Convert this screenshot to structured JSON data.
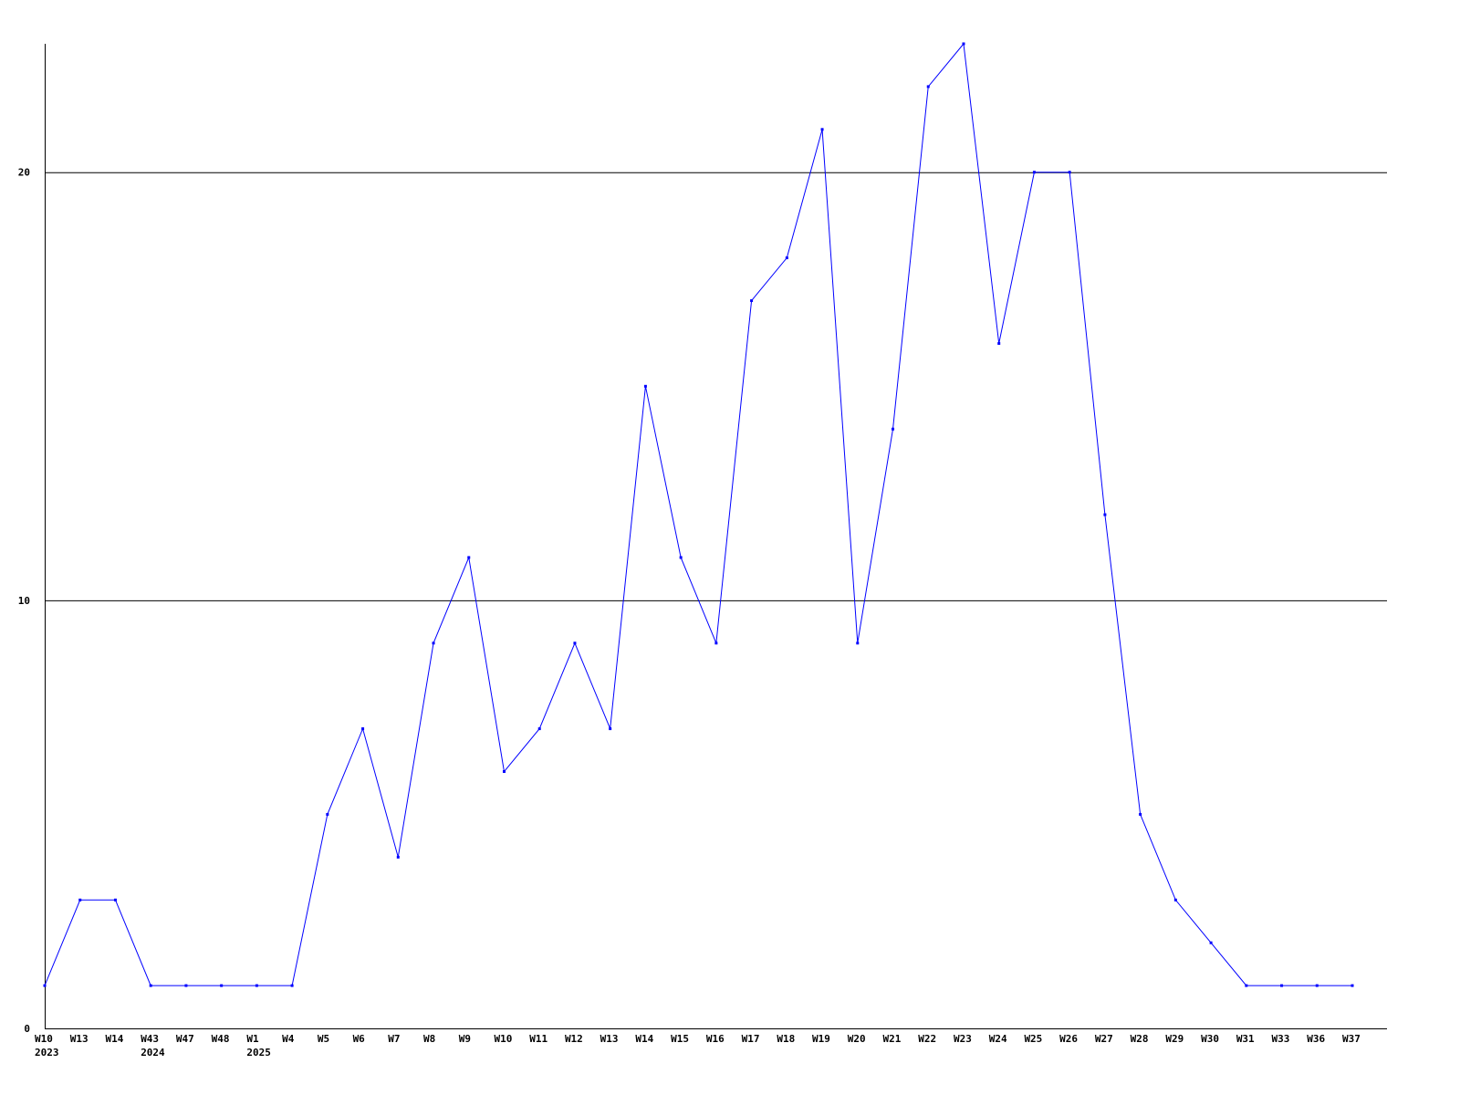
{
  "chart_data": {
    "type": "line",
    "title": "",
    "xlabel": "",
    "ylabel": "",
    "ylim": [
      0,
      23
    ],
    "yticks": [
      0,
      10,
      20
    ],
    "grid": "horizontal at y ticks",
    "line_color": "#0000ff",
    "categories": [
      "W10",
      "W13",
      "W14",
      "W43",
      "W47",
      "W48",
      "W1",
      "W4",
      "W5",
      "W6",
      "W7",
      "W8",
      "W9",
      "W10",
      "W11",
      "W12",
      "W13",
      "W14",
      "W15",
      "W16",
      "W17",
      "W18",
      "W19",
      "W20",
      "W21",
      "W22",
      "W23",
      "W24",
      "W25",
      "W26",
      "W27",
      "W28",
      "W29",
      "W30",
      "W31",
      "W33",
      "W36",
      "W37"
    ],
    "year_labels": [
      "2023",
      "",
      "",
      "2024",
      "",
      "",
      "2025",
      "",
      "",
      "",
      "",
      "",
      "",
      "",
      "",
      "",
      "",
      "",
      "",
      "",
      "",
      "",
      "",
      "",
      "",
      "",
      "",
      "",
      "",
      "",
      "",
      "",
      "",
      "",
      "",
      "",
      "",
      ""
    ],
    "values": [
      1,
      3,
      3,
      1,
      1,
      1,
      1,
      1,
      5,
      7,
      4,
      9,
      11,
      6,
      7,
      9,
      7,
      15,
      11,
      9,
      17,
      18,
      21,
      9,
      14,
      22,
      23,
      16,
      20,
      20,
      12,
      5,
      3,
      2,
      1,
      1,
      1,
      1
    ]
  }
}
